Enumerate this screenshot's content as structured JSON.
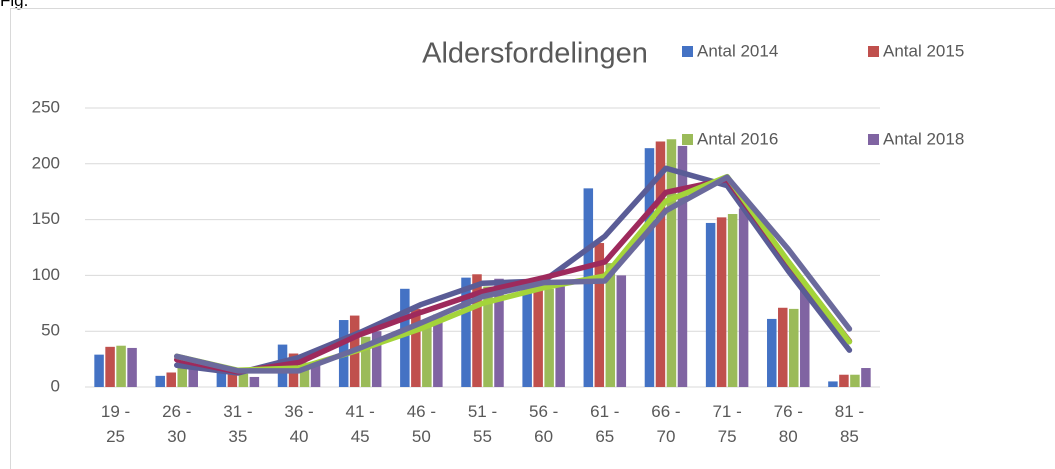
{
  "caption": "Fig.",
  "chart_data": {
    "type": "bar",
    "title": "Aldersfordelingen",
    "categories": [
      "19 - 25",
      "26 - 30",
      "31 - 35",
      "36 - 40",
      "41 - 45",
      "46 - 50",
      "51 - 55",
      "56 - 60",
      "61 - 65",
      "66 - 70",
      "71 - 75",
      "76 - 80",
      "81 - 85"
    ],
    "series": [
      {
        "name": "Antal 2014",
        "color": "#4472c4",
        "values": [
          29,
          10,
          15,
          38,
          60,
          88,
          98,
          92,
          178,
          214,
          147,
          61,
          5
        ]
      },
      {
        "name": "Antal 2015",
        "color": "#c0504d",
        "values": [
          36,
          13,
          14,
          30,
          64,
          70,
          101,
          95,
          129,
          220,
          152,
          71,
          11
        ]
      },
      {
        "name": "Antal 2016",
        "color": "#9bbb59",
        "values": [
          37,
          18,
          12,
          22,
          45,
          60,
          90,
          88,
          111,
          222,
          155,
          70,
          11
        ]
      },
      {
        "name": "Antal 2018",
        "color": "#8064a2",
        "values": [
          35,
          20,
          9,
          20,
          50,
          65,
          97,
          90,
          100,
          216,
          160,
          87,
          17
        ]
      }
    ],
    "trendlines": [
      {
        "color": "#5a5c96",
        "values": [
          null,
          19.5,
          12.5,
          26.5,
          49,
          74,
          93,
          95,
          135,
          196,
          180.5,
          104,
          33
        ]
      },
      {
        "color": "#9e2a5c",
        "values": [
          null,
          24.5,
          13.5,
          22,
          47,
          67,
          85.5,
          98,
          112,
          174.5,
          186,
          111.5,
          41
        ]
      },
      {
        "color": "#a4d43a",
        "values": [
          null,
          27.5,
          15,
          17,
          33.5,
          52.5,
          75,
          89,
          99.5,
          166.5,
          188.5,
          112.5,
          40.5
        ]
      },
      {
        "color": "#6b6a9c",
        "values": [
          null,
          27.5,
          14.5,
          14.5,
          35,
          57.5,
          81,
          93.5,
          95,
          158,
          188,
          123.5,
          52
        ]
      }
    ],
    "ylim": [
      0,
      250
    ],
    "yticks": [
      0,
      50,
      100,
      150,
      200,
      250
    ],
    "grid": true,
    "legend": "top-right"
  }
}
